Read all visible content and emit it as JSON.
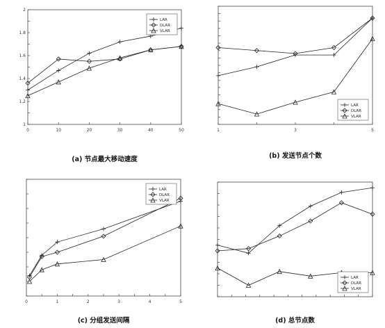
{
  "chart_data": [
    {
      "type": "line",
      "caption": "(a) 节点最大移动速度",
      "x": [
        0,
        10,
        20,
        30,
        40,
        50
      ],
      "xlim": [
        0,
        50
      ],
      "ylim": [
        1.0,
        2.0
      ],
      "xticks": [
        "0",
        "10",
        "20",
        "30",
        "40",
        "50"
      ],
      "yticks": [
        "1",
        "",
        "1.2",
        "",
        "1.4",
        "",
        "1.6",
        "",
        "1.8",
        "",
        "2"
      ],
      "ylabel": "",
      "grid": false,
      "legend_position": "top-right",
      "series": [
        {
          "name": "LAR",
          "values": [
            1.3,
            1.47,
            1.62,
            1.72,
            1.77,
            1.84
          ]
        },
        {
          "name": "DLAR",
          "values": [
            1.36,
            1.57,
            1.55,
            1.57,
            1.65,
            1.68
          ]
        },
        {
          "name": "VLAR",
          "values": [
            1.25,
            1.37,
            1.49,
            1.58,
            1.65,
            1.68
          ]
        }
      ]
    },
    {
      "type": "line",
      "caption": "(b) 发送节点个数",
      "x": [
        1,
        2,
        3,
        4,
        5
      ],
      "xlim": [
        1,
        5
      ],
      "ylim": [
        1.2,
        2.0
      ],
      "xticks": [
        "1",
        "",
        "3",
        "",
        "5"
      ],
      "yticks": [
        "",
        "",
        "",
        "",
        "",
        "",
        "",
        "",
        "",
        "",
        "",
        "",
        "",
        "",
        "",
        "",
        ""
      ],
      "ylabel": "",
      "grid": false,
      "legend_position": "bottom-right",
      "series": [
        {
          "name": "LAR",
          "values": [
            1.53,
            1.59,
            1.67,
            1.67,
            1.92
          ]
        },
        {
          "name": "DLAR",
          "values": [
            1.72,
            1.7,
            1.68,
            1.72,
            1.92
          ]
        },
        {
          "name": "VLAR",
          "values": [
            1.34,
            1.27,
            1.35,
            1.42,
            1.78
          ]
        }
      ]
    },
    {
      "type": "line",
      "caption": "(c) 分组发送间隔",
      "x": [
        0.1,
        0.5,
        1.0,
        2.5,
        5.0
      ],
      "xlim": [
        0,
        5
      ],
      "ylim": [
        1.2,
        2.0
      ],
      "xticks": [
        "0",
        "",
        "1",
        "",
        "2",
        "",
        "3",
        "",
        "4",
        "",
        "5"
      ],
      "yticks": [
        "",
        "",
        "",
        "",
        "",
        "",
        "",
        "",
        ""
      ],
      "ylabel": "",
      "grid": false,
      "legend_position": "top-right",
      "series": [
        {
          "name": "LAR",
          "values": [
            1.34,
            1.48,
            1.57,
            1.66,
            1.85
          ]
        },
        {
          "name": "DLAR",
          "values": [
            1.33,
            1.47,
            1.5,
            1.61,
            1.87
          ]
        },
        {
          "name": "VLAR",
          "values": [
            1.3,
            1.38,
            1.42,
            1.45,
            1.68
          ]
        }
      ]
    },
    {
      "type": "line",
      "caption": "(d) 总节点数",
      "x": [
        1,
        2,
        3,
        4,
        5,
        6
      ],
      "xlim": [
        1,
        6
      ],
      "ylim": [
        1.0,
        2.0
      ],
      "xticks": [
        "",
        "",
        "",
        "",
        "",
        "",
        "",
        "",
        "",
        "",
        "",
        ""
      ],
      "yticks": [
        "",
        "",
        "",
        "",
        "",
        "",
        "",
        "",
        "",
        "",
        ""
      ],
      "ylabel": "",
      "grid": false,
      "legend_position": "bottom-right",
      "series": [
        {
          "name": "LAR",
          "values": [
            1.45,
            1.38,
            1.62,
            1.79,
            1.91,
            1.95
          ]
        },
        {
          "name": "DLAR",
          "values": [
            1.4,
            1.42,
            1.53,
            1.66,
            1.82,
            1.72
          ]
        },
        {
          "name": "VLAR",
          "values": [
            1.25,
            1.1,
            1.22,
            1.18,
            1.21,
            1.21
          ]
        }
      ]
    }
  ]
}
